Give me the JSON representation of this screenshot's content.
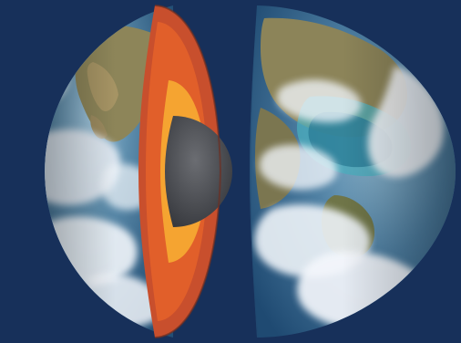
{
  "scene": {
    "subject": "earth-cutaway",
    "colors": {
      "background": "#17305a",
      "ocean": "#3f6f8f",
      "ocean_deep": "#234f75",
      "land": "#7d7b53",
      "land_dry": "#a79a6a",
      "cloud": "#f2f6fb",
      "crust": "#c84f2d",
      "mantle": "#e15f2a",
      "outer_core": "#f5a431",
      "inner_core": "#48494d"
    }
  }
}
